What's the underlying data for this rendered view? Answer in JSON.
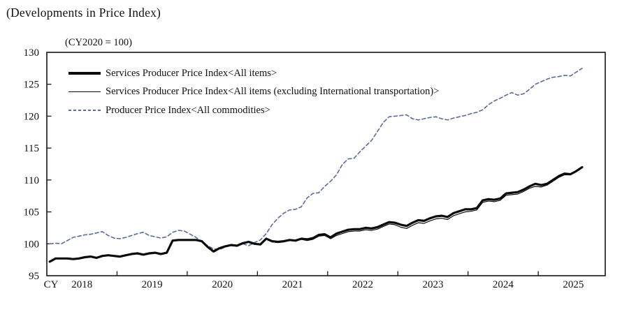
{
  "chart_data": {
    "type": "line",
    "title": "(Developments in Price Index)",
    "axis_note": "(CY2020 = 100)",
    "x_axis": {
      "prefix_label": "CY",
      "tick_labels": [
        "2018",
        "2019",
        "2020",
        "2021",
        "2022",
        "2023",
        "2024",
        "2025"
      ],
      "frequency": "monthly",
      "range_start": "2018",
      "range_end": "2025"
    },
    "y_axis": {
      "min": 95,
      "max": 130,
      "step": 5,
      "tick_labels": [
        "95",
        "100",
        "105",
        "110",
        "115",
        "120",
        "125",
        "130"
      ]
    },
    "grid": "off",
    "legend_position": "top-left-inside",
    "legend": [
      {
        "label": "Services Producer Price Index<All items>",
        "style": "solid-thick",
        "color": "#0a0a0a"
      },
      {
        "label": "Services Producer Price Index<All items (excluding International transportation)>",
        "style": "solid-thin",
        "color": "#0a0a0a"
      },
      {
        "label": "Producer Price Index<All commodities>",
        "style": "dashed",
        "color": "#5a6b9e"
      }
    ],
    "series": [
      {
        "name": "Services Producer Price Index<All items>",
        "color": "#0a0a0a",
        "line_width": 3.2,
        "dash": null,
        "values": [
          97.2,
          97.7,
          97.7,
          97.7,
          97.6,
          97.7,
          97.9,
          98.0,
          97.8,
          98.1,
          98.2,
          98.1,
          98.0,
          98.2,
          98.4,
          98.5,
          98.3,
          98.5,
          98.6,
          98.4,
          98.6,
          100.5,
          100.6,
          100.6,
          100.6,
          100.6,
          100.4,
          99.5,
          98.8,
          99.3,
          99.6,
          99.8,
          99.7,
          100.1,
          100.3,
          100.0,
          99.9,
          100.8,
          100.4,
          100.3,
          100.4,
          100.6,
          100.5,
          100.8,
          100.7,
          100.9,
          101.4,
          101.5,
          101.0,
          101.6,
          101.9,
          102.2,
          102.3,
          102.3,
          102.5,
          102.4,
          102.6,
          103.0,
          103.4,
          103.3,
          103.0,
          102.8,
          103.3,
          103.7,
          103.6,
          104.0,
          104.3,
          104.4,
          104.2,
          104.8,
          105.1,
          105.4,
          105.4,
          105.6,
          106.8,
          107.0,
          106.9,
          107.1,
          107.9,
          108.0,
          108.1,
          108.5,
          109.0,
          109.4,
          109.2,
          109.4,
          110.0,
          110.6,
          111.0,
          110.9,
          111.4,
          112.0
        ]
      },
      {
        "name": "Services Producer Price Index<All items (excluding International transportation)>",
        "color": "#0a0a0a",
        "line_width": 1.2,
        "dash": null,
        "values": [
          97.2,
          97.7,
          97.7,
          97.7,
          97.6,
          97.7,
          97.9,
          98.0,
          97.8,
          98.1,
          98.2,
          98.1,
          98.0,
          98.2,
          98.4,
          98.5,
          98.3,
          98.5,
          98.6,
          98.4,
          98.6,
          100.5,
          100.6,
          100.6,
          100.6,
          100.6,
          100.4,
          99.5,
          98.8,
          99.3,
          99.6,
          99.8,
          99.7,
          100.1,
          100.3,
          100.0,
          99.9,
          100.8,
          100.3,
          100.2,
          100.3,
          100.5,
          100.4,
          100.7,
          100.5,
          100.7,
          101.2,
          101.3,
          100.8,
          101.3,
          101.6,
          101.9,
          102.0,
          102.0,
          102.2,
          102.1,
          102.3,
          102.7,
          103.1,
          103.0,
          102.6,
          102.4,
          102.9,
          103.3,
          103.2,
          103.6,
          103.9,
          104.0,
          103.8,
          104.4,
          104.7,
          105.0,
          105.1,
          105.3,
          106.5,
          106.7,
          106.6,
          106.8,
          107.6,
          107.7,
          107.8,
          108.2,
          108.7,
          109.0,
          108.9,
          109.2,
          109.8,
          110.4,
          110.8,
          110.8,
          111.3,
          111.9
        ]
      },
      {
        "name": "Producer Price Index<All commodities>",
        "color": "#5a6b9e",
        "line_width": 1.6,
        "dash": "5,3.5",
        "values": [
          100.0,
          100.1,
          100.0,
          100.5,
          101.0,
          101.2,
          101.4,
          101.5,
          101.7,
          101.9,
          101.3,
          100.9,
          100.8,
          101.0,
          101.3,
          101.6,
          101.8,
          101.3,
          101.1,
          100.9,
          101.1,
          101.8,
          102.1,
          102.0,
          101.5,
          101.0,
          100.3,
          99.7,
          99.2,
          99.1,
          99.5,
          99.9,
          99.7,
          100.0,
          99.7,
          100.2,
          100.6,
          101.6,
          103.0,
          104.0,
          104.8,
          105.3,
          105.4,
          105.8,
          107.2,
          107.9,
          108.0,
          109.0,
          109.8,
          110.8,
          112.4,
          113.3,
          113.4,
          114.4,
          115.3,
          116.2,
          117.6,
          119.0,
          119.9,
          120.0,
          120.1,
          120.2,
          119.6,
          119.4,
          119.6,
          119.8,
          119.9,
          119.6,
          119.4,
          119.7,
          119.9,
          120.1,
          120.4,
          120.6,
          121.0,
          121.8,
          122.4,
          122.8,
          123.3,
          123.7,
          123.3,
          123.5,
          124.2,
          125.0,
          125.4,
          125.8,
          126.1,
          126.2,
          126.4,
          126.3,
          126.9,
          127.5
        ]
      }
    ]
  },
  "colors": {
    "axis": "#161616",
    "background": "#ffffff",
    "dashed_series": "#5a6b9e"
  }
}
